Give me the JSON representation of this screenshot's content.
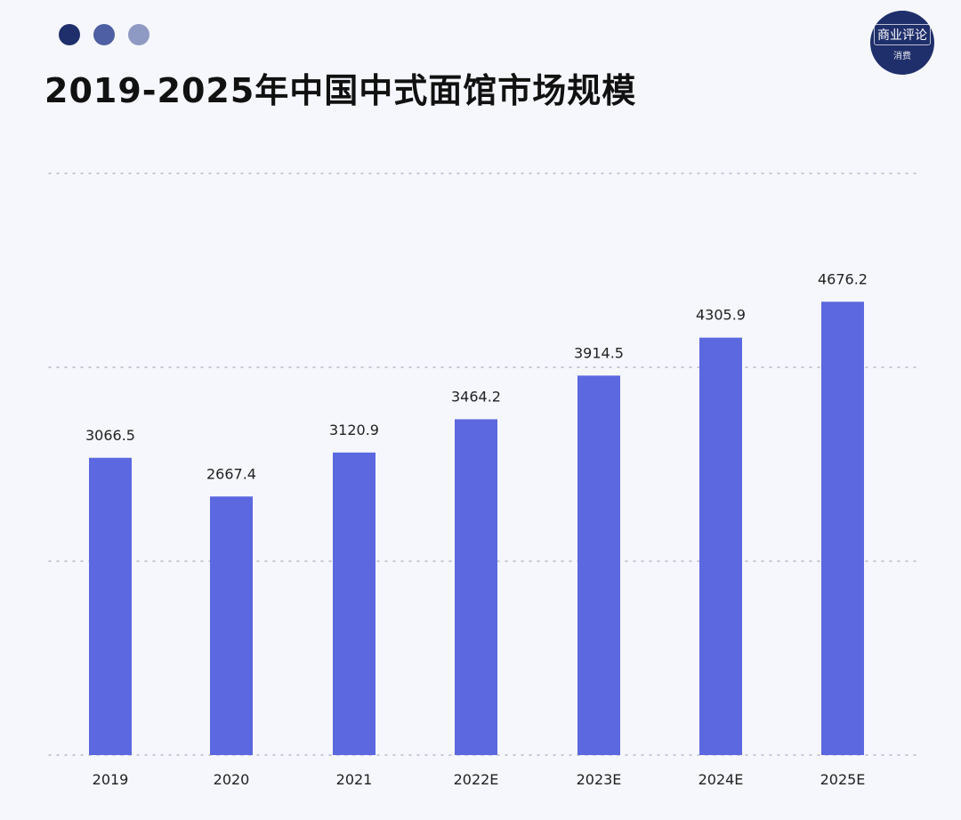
{
  "header": {
    "dots": [
      {
        "name": "dot-dark",
        "color": "#1f2f6b"
      },
      {
        "name": "dot-medium",
        "color": "#4f5fa3"
      },
      {
        "name": "dot-light",
        "color": "#8f9ac4"
      }
    ],
    "logo": {
      "main": "商业评论",
      "sub": "消费"
    },
    "title": "2019-2025年中国中式面馆市场规模"
  },
  "colors": {
    "bar": "#5b68e0",
    "background": "#f6f7fc",
    "grid": "#b9bccc",
    "label": "#222222"
  },
  "chart_data": {
    "type": "bar",
    "title": "2019-2025年中国中式面馆市场规模",
    "xlabel": "",
    "ylabel": "",
    "categories": [
      "2019",
      "2020",
      "2021",
      "2022E",
      "2023E",
      "2024E",
      "2025E"
    ],
    "values": [
      3066.5,
      2667.4,
      3120.9,
      3464.2,
      3914.5,
      4305.9,
      4676.2
    ],
    "value_labels": [
      "3066.5",
      "2667.4",
      "3120.9",
      "3464.2",
      "3914.5",
      "4305.9",
      "4676.2"
    ],
    "ylim": [
      0,
      6000
    ],
    "gridlines": [
      0,
      2000,
      4000,
      6000
    ],
    "grid": true,
    "grid_style": "dotted",
    "legend": "none"
  }
}
